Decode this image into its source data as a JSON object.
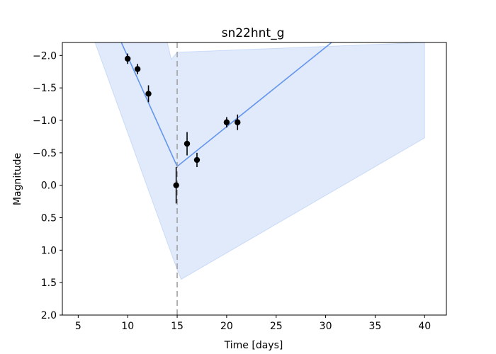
{
  "chart_data": {
    "type": "line",
    "title": "sn22hnt_g",
    "xlabel": "Time [days]",
    "ylabel": "Magnitude",
    "xlim": [
      3.4,
      42.2
    ],
    "ylim": [
      2.0,
      -2.2
    ],
    "y_inverted": true,
    "grid": false,
    "x_ticks": [
      5,
      10,
      15,
      20,
      25,
      30,
      35,
      40
    ],
    "y_ticks": [
      -2.0,
      -1.5,
      -1.0,
      -0.5,
      0.0,
      0.5,
      1.0,
      1.5,
      2.0
    ],
    "x_tick_labels": [
      "5",
      "10",
      "15",
      "20",
      "25",
      "30",
      "35",
      "40"
    ],
    "y_tick_labels": [
      "−2.0",
      "−1.5",
      "−1.0",
      "−0.5",
      "0.0",
      "0.5",
      "1.0",
      "1.5",
      "2.0"
    ],
    "series": [
      {
        "kind": "model",
        "color": "#6495ed",
        "x": [
          7.0,
          15.0,
          30.6
        ],
        "y": [
          -3.0,
          -0.29,
          -2.2
        ]
      },
      {
        "kind": "band",
        "color": "#6495ed",
        "opacity": 0.2,
        "upper_x": [
          6.7,
          14.0,
          15.0,
          30.0,
          40.0
        ],
        "upper_y": [
          -2.2,
          -2.2,
          -2.2,
          -2.2,
          -2.2
        ],
        "upper_notch_x": [
          14.0,
          14.4,
          15.0
        ],
        "upper_notch_y": [
          -2.2,
          -1.94,
          -2.05
        ],
        "lower_x": [
          6.7,
          15.0,
          15.4,
          40.0
        ],
        "lower_y": [
          -2.2,
          1.3,
          1.45,
          -0.73
        ]
      },
      {
        "kind": "observations",
        "color": "#000000",
        "x": [
          10.0,
          11.0,
          12.1,
          14.9,
          16.0,
          17.0,
          20.0,
          21.1
        ],
        "y": [
          -1.95,
          -1.79,
          -1.41,
          0.0,
          -0.64,
          -0.39,
          -0.97,
          -0.97
        ],
        "yerr": [
          0.08,
          0.08,
          0.13,
          0.28,
          0.18,
          0.11,
          0.08,
          0.12
        ]
      }
    ],
    "vline": {
      "x": 15.0,
      "style": "dashed",
      "color": "#a0a0a0"
    }
  }
}
